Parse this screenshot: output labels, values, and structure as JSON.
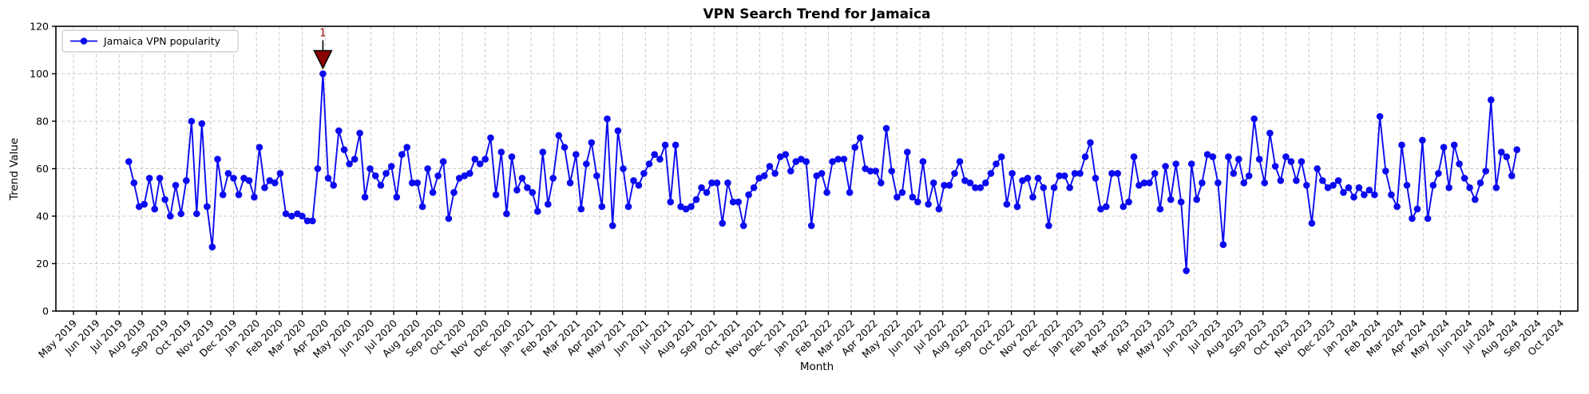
{
  "chart_data": {
    "type": "line",
    "title": "VPN Search Trend for Jamaica",
    "xlabel": "Month",
    "ylabel": "Trend Value",
    "legend_label": "Jamaica VPN popularity",
    "legend_position": "upper left",
    "grid": true,
    "ylim": [
      0,
      120
    ],
    "y_ticks": [
      0,
      20,
      40,
      60,
      80,
      100,
      120
    ],
    "x_tick_labels": [
      "May 2019",
      "Jun 2019",
      "Jul 2019",
      "Aug 2019",
      "Sep 2019",
      "Oct 2019",
      "Nov 2019",
      "Dec 2019",
      "Jan 2020",
      "Feb 2020",
      "Mar 2020",
      "Apr 2020",
      "May 2020",
      "Jun 2020",
      "Jul 2020",
      "Aug 2020",
      "Sep 2020",
      "Oct 2020",
      "Nov 2020",
      "Dec 2020",
      "Jan 2021",
      "Feb 2021",
      "Mar 2021",
      "Apr 2021",
      "May 2021",
      "Jun 2021",
      "Jul 2021",
      "Aug 2021",
      "Sep 2021",
      "Oct 2021",
      "Nov 2021",
      "Dec 2021",
      "Jan 2022",
      "Feb 2022",
      "Mar 2022",
      "Apr 2022",
      "May 2022",
      "Jun 2022",
      "Jul 2022",
      "Aug 2022",
      "Sep 2022",
      "Oct 2022",
      "Nov 2022",
      "Dec 2022",
      "Jan 2023",
      "Feb 2023",
      "Mar 2023",
      "Apr 2023",
      "May 2023",
      "Jun 2023",
      "Jul 2023",
      "Aug 2023",
      "Sep 2023",
      "Oct 2023",
      "Nov 2023",
      "Dec 2023",
      "Jan 2024",
      "Feb 2024",
      "Mar 2024",
      "Apr 2024",
      "May 2024",
      "Jun 2024",
      "Jul 2024",
      "Aug 2024",
      "Sep 2024",
      "Oct 2024"
    ],
    "series": [
      {
        "name": "Jamaica VPN popularity",
        "start_date": "2019-07-14",
        "interval": "weekly",
        "values": [
          63,
          54,
          44,
          45,
          56,
          43,
          56,
          47,
          40,
          53,
          41,
          55,
          80,
          41,
          79,
          44,
          27,
          64,
          49,
          58,
          56,
          49,
          56,
          55,
          48,
          69,
          52,
          55,
          54,
          58,
          41,
          40,
          41,
          40,
          38,
          38,
          60,
          100,
          56,
          53,
          76,
          68,
          62,
          64,
          75,
          48,
          60,
          57,
          53,
          58,
          61,
          48,
          66,
          69,
          54,
          54,
          44,
          60,
          50,
          57,
          63,
          39,
          50,
          56,
          57,
          58,
          64,
          62,
          64,
          73,
          49,
          67,
          41,
          65,
          51,
          56,
          52,
          50,
          42,
          67,
          45,
          56,
          74,
          69,
          54,
          66,
          43,
          62,
          71,
          57,
          44,
          81,
          36,
          76,
          60,
          44,
          55,
          53,
          58,
          62,
          66,
          64,
          70,
          46,
          70,
          44,
          43,
          44,
          47,
          52,
          50,
          54,
          54,
          37,
          54,
          46,
          46,
          36,
          49,
          52,
          56,
          57,
          61,
          58,
          65,
          66,
          59,
          63,
          64,
          63,
          36,
          57,
          58,
          50,
          63,
          64,
          64,
          50,
          69,
          73,
          60,
          59,
          59,
          54,
          77,
          59,
          48,
          50,
          67,
          48,
          46,
          63,
          45,
          54,
          43,
          53,
          53,
          58,
          63,
          55,
          54,
          52,
          52,
          54,
          58,
          62,
          65,
          45,
          58,
          44,
          55,
          56,
          48,
          56,
          52,
          36,
          52,
          57,
          57,
          52,
          58,
          58,
          65,
          71,
          56,
          43,
          44,
          58,
          58,
          44,
          46,
          65,
          53,
          54,
          54,
          58,
          43,
          61,
          47,
          62,
          46,
          17,
          62,
          47,
          54,
          66,
          65,
          54,
          28,
          65,
          58,
          64,
          54,
          57,
          81,
          64,
          54,
          75,
          61,
          55,
          65,
          63,
          55,
          63,
          53,
          37,
          60,
          55,
          52,
          53,
          55,
          50,
          52,
          48,
          52,
          49,
          51,
          49,
          82,
          59,
          49,
          44,
          70,
          53,
          39,
          43,
          72,
          39,
          53,
          58,
          69,
          52,
          70,
          62,
          56,
          52,
          47,
          54,
          59,
          89,
          52,
          67,
          65,
          57,
          68
        ]
      }
    ],
    "annotation": {
      "text": "1",
      "date": "2020-03-29",
      "value": 100
    },
    "colors": {
      "line": "#0b0bf0",
      "marker": "#0b0bf0",
      "annotation": "#8b0000",
      "annotation_edge": "#000000",
      "grid": "#c9c9c9",
      "axes": "#000000",
      "background": "#ffffff"
    }
  }
}
